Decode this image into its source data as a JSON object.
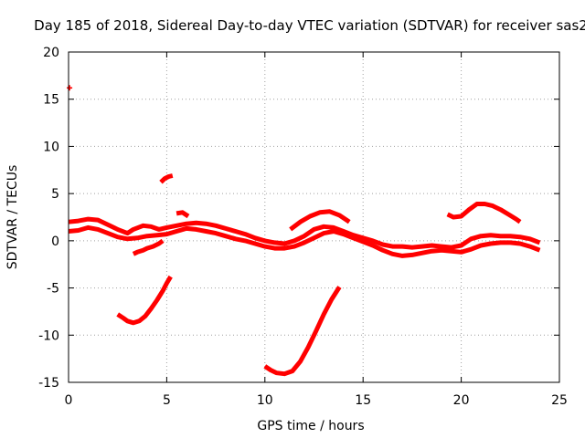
{
  "chart_data": {
    "type": "scatter",
    "title": "Day 185 of 2018, Sidereal Day-to-day VTEC variation (SDTVAR) for receiver sas2",
    "xlabel": "GPS time / hours",
    "ylabel": "SDTVAR / TECUs",
    "xlim": [
      0,
      25
    ],
    "ylim": [
      -15,
      20
    ],
    "xticks": [
      0,
      5,
      10,
      15,
      20,
      25
    ],
    "yticks": [
      -15,
      -10,
      -5,
      0,
      5,
      10,
      15,
      20
    ],
    "grid": true,
    "series_color": "#ff0000",
    "series": [
      {
        "name": "band-main-upper",
        "x": [
          0,
          0.5,
          1.0,
          1.5,
          2.0,
          2.5,
          3.0,
          3.3,
          3.8,
          4.2,
          4.6,
          5.0,
          5.5,
          6.0,
          6.5,
          7.0,
          7.5,
          8.0,
          8.5,
          9.0,
          9.5,
          10.0,
          10.5,
          11.0,
          11.5,
          12.0,
          12.5,
          13.0,
          13.5,
          14.0,
          14.5,
          15.0,
          15.5,
          16.0,
          16.5,
          17.0,
          17.5,
          18.0,
          18.5,
          19.0,
          19.5,
          20.0,
          20.5,
          21.0,
          21.5,
          22.0,
          22.5,
          23.0,
          23.5,
          24.0
        ],
        "y": [
          2.0,
          2.1,
          2.3,
          2.2,
          1.7,
          1.2,
          0.8,
          1.2,
          1.6,
          1.5,
          1.2,
          1.4,
          1.6,
          1.8,
          1.9,
          1.8,
          1.6,
          1.3,
          1.0,
          0.7,
          0.3,
          0.0,
          -0.2,
          -0.3,
          0.0,
          0.5,
          1.2,
          1.5,
          1.4,
          1.0,
          0.6,
          0.3,
          0.0,
          -0.4,
          -0.6,
          -0.6,
          -0.7,
          -0.6,
          -0.5,
          -0.6,
          -0.7,
          -0.5,
          0.2,
          0.5,
          0.6,
          0.5,
          0.5,
          0.4,
          0.2,
          -0.2
        ]
      },
      {
        "name": "band-main-lower",
        "x": [
          0,
          0.5,
          1.0,
          1.5,
          2.0,
          2.5,
          3.0,
          3.5,
          4.0,
          4.5,
          5.0,
          5.5,
          6.0,
          6.5,
          7.0,
          7.5,
          8.0,
          8.5,
          9.0,
          9.5,
          10.0,
          10.5,
          11.0,
          11.5,
          12.0,
          12.5,
          13.0,
          13.5,
          14.0,
          14.5,
          15.0,
          15.5,
          16.0,
          16.5,
          17.0,
          17.5,
          18.0,
          18.5,
          19.0,
          19.5,
          20.0,
          20.5,
          21.0,
          21.5,
          22.0,
          22.5,
          23.0,
          23.5,
          24.0
        ],
        "y": [
          1.0,
          1.1,
          1.4,
          1.2,
          0.8,
          0.4,
          0.2,
          0.3,
          0.5,
          0.6,
          0.7,
          1.0,
          1.3,
          1.2,
          1.0,
          0.8,
          0.5,
          0.2,
          0.0,
          -0.3,
          -0.6,
          -0.8,
          -0.8,
          -0.6,
          -0.2,
          0.3,
          0.8,
          1.0,
          0.7,
          0.3,
          -0.1,
          -0.5,
          -1.0,
          -1.4,
          -1.6,
          -1.5,
          -1.3,
          -1.1,
          -1.0,
          -1.1,
          -1.2,
          -0.9,
          -0.5,
          -0.3,
          -0.2,
          -0.2,
          -0.3,
          -0.6,
          -1.0
        ]
      },
      {
        "name": "arc-night-lower",
        "x": [
          3.3,
          3.5,
          3.8,
          4.0,
          4.3,
          4.6,
          4.8
        ],
        "y": [
          -1.4,
          -1.2,
          -1.0,
          -0.8,
          -0.6,
          -0.3,
          0.0
        ]
      },
      {
        "name": "arc-early-morning-dip",
        "x": [
          2.5,
          2.8,
          3.0,
          3.3,
          3.6,
          3.9,
          4.2,
          4.5,
          4.8,
          5.0,
          5.2
        ],
        "y": [
          -7.8,
          -8.2,
          -8.5,
          -8.7,
          -8.5,
          -8.0,
          -7.2,
          -6.3,
          -5.3,
          -4.5,
          -3.8
        ]
      },
      {
        "name": "arc-midday-dip",
        "x": [
          10.0,
          10.3,
          10.6,
          11.0,
          11.4,
          11.8,
          12.2,
          12.6,
          13.0,
          13.4,
          13.8
        ],
        "y": [
          -13.3,
          -13.7,
          -14.0,
          -14.1,
          -13.8,
          -12.8,
          -11.3,
          -9.6,
          -7.8,
          -6.2,
          -4.9
        ]
      },
      {
        "name": "arc-morning-high",
        "x": [
          4.7,
          4.9,
          5.1,
          5.3
        ],
        "y": [
          6.2,
          6.6,
          6.8,
          6.9
        ]
      },
      {
        "name": "arc-morning-bump",
        "x": [
          5.5,
          5.8,
          6.1
        ],
        "y": [
          2.9,
          3.0,
          2.6
        ]
      },
      {
        "name": "arc-afternoon-hump",
        "x": [
          11.3,
          11.8,
          12.3,
          12.8,
          13.3,
          13.8,
          14.3
        ],
        "y": [
          1.2,
          2.0,
          2.6,
          3.0,
          3.1,
          2.7,
          2.0
        ]
      },
      {
        "name": "arc-evening-hump",
        "x": [
          19.3,
          19.6,
          20.0,
          20.4,
          20.8,
          21.2,
          21.6,
          22.0,
          22.4,
          22.8,
          23.0
        ],
        "y": [
          2.8,
          2.5,
          2.6,
          3.3,
          3.9,
          3.9,
          3.7,
          3.3,
          2.8,
          2.3,
          2.0
        ]
      },
      {
        "name": "outlier-point",
        "x": [
          0.05
        ],
        "y": [
          16.2
        ]
      }
    ]
  }
}
